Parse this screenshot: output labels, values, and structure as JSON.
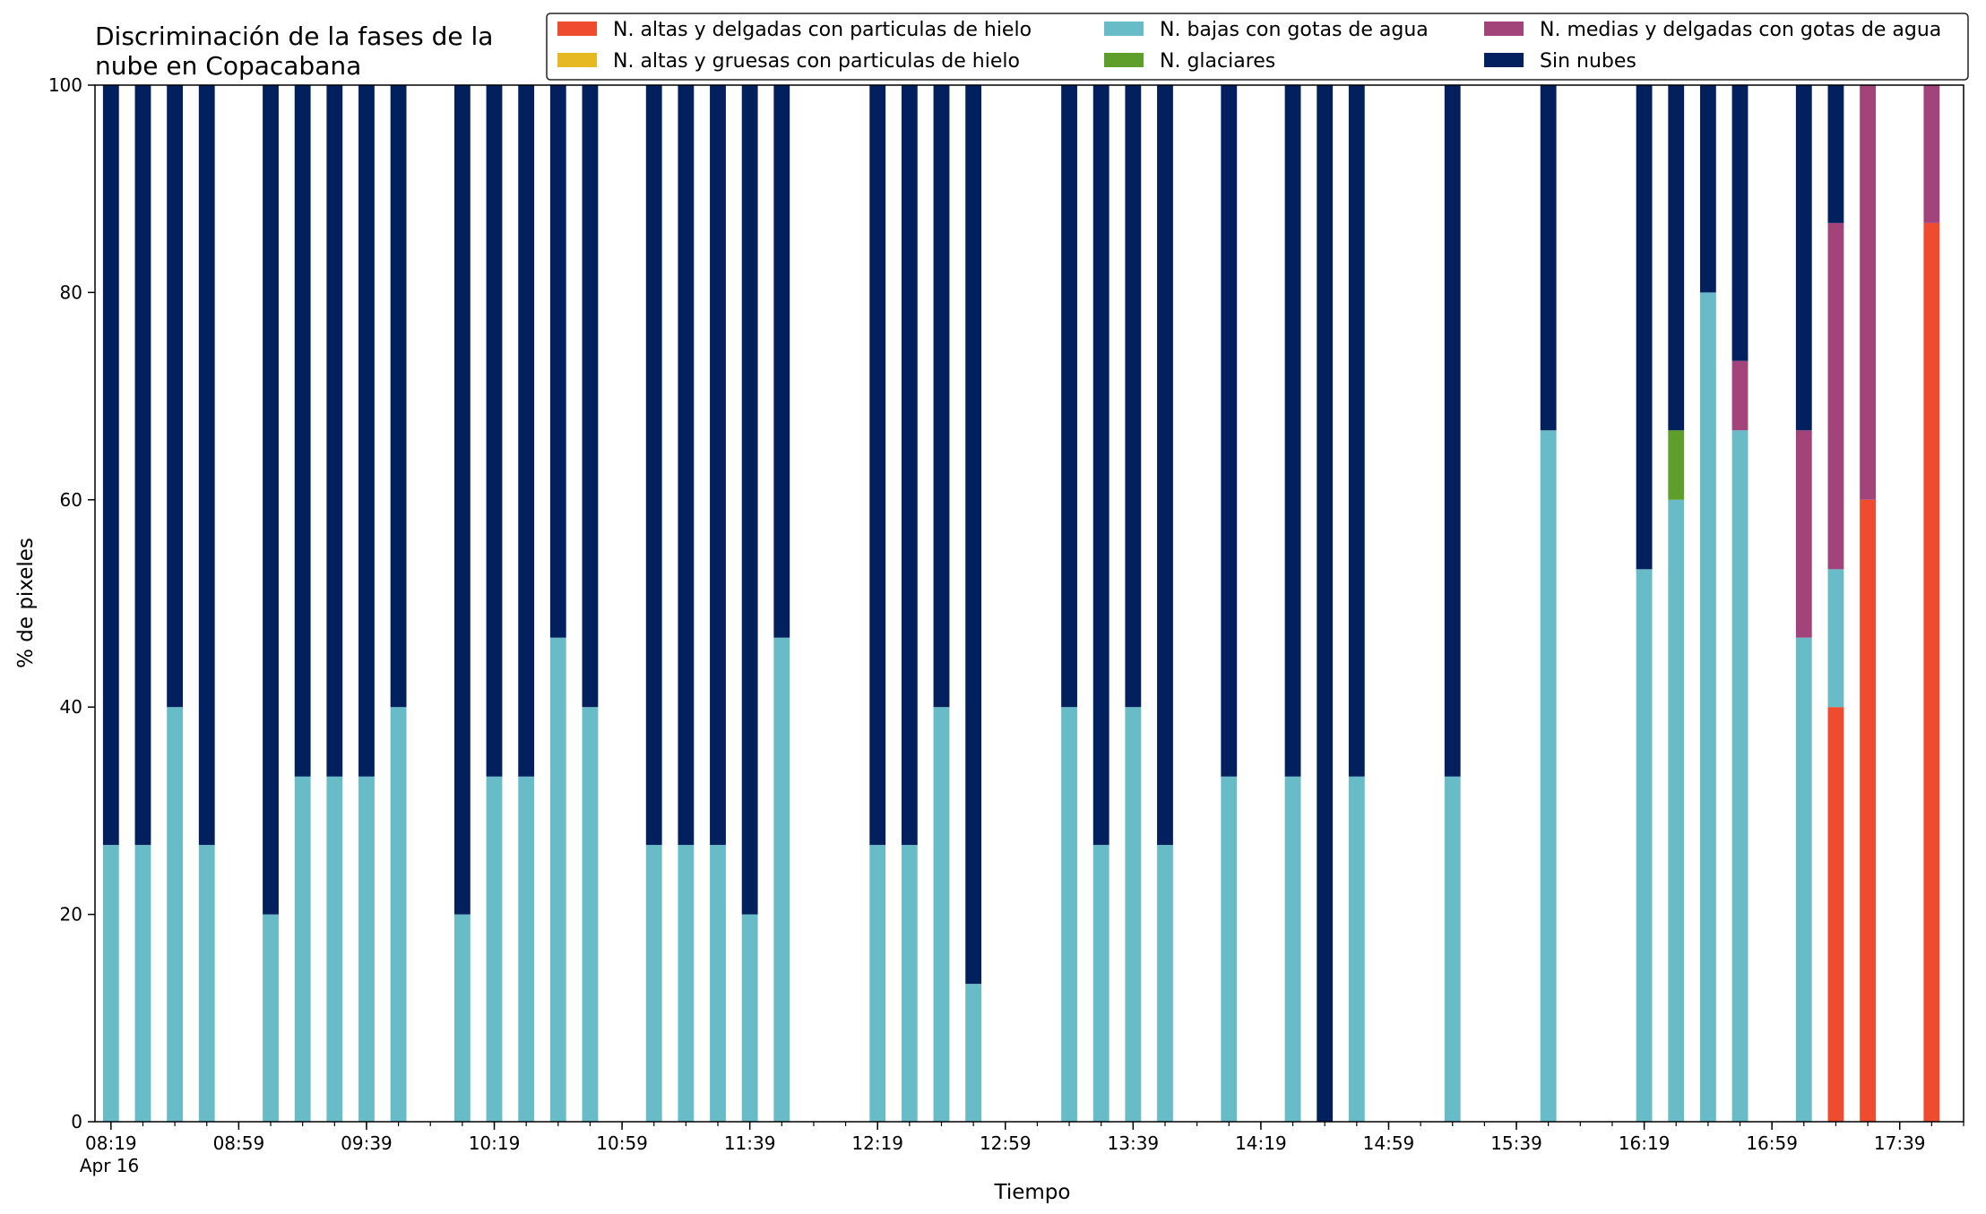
{
  "chart_data": {
    "type": "bar",
    "stacked": true,
    "title": "Discriminación de la fases de la nube en Copacabana",
    "title_lines": [
      "Discriminación de la fases de la",
      "nube en Copacabana"
    ],
    "xlabel": "Tiempo",
    "ylabel": "% de pixeles",
    "ylim": [
      0,
      100
    ],
    "yticks": [
      0,
      20,
      40,
      60,
      80,
      100
    ],
    "xlim": [
      "08:14",
      "17:59"
    ],
    "x_major_ticks": [
      {
        "time": "08:19",
        "label": "08:19",
        "sublabel": "Apr 16"
      },
      {
        "time": "08:59",
        "label": "08:59"
      },
      {
        "time": "09:39",
        "label": "09:39"
      },
      {
        "time": "10:19",
        "label": "10:19"
      },
      {
        "time": "10:59",
        "label": "10:59"
      },
      {
        "time": "11:39",
        "label": "11:39"
      },
      {
        "time": "12:19",
        "label": "12:19"
      },
      {
        "time": "12:59",
        "label": "12:59"
      },
      {
        "time": "13:39",
        "label": "13:39"
      },
      {
        "time": "14:19",
        "label": "14:19"
      },
      {
        "time": "14:59",
        "label": "14:59"
      },
      {
        "time": "15:39",
        "label": "15:39"
      },
      {
        "time": "16:19",
        "label": "16:19"
      },
      {
        "time": "16:59",
        "label": "16:59"
      },
      {
        "time": "17:39",
        "label": "17:39"
      }
    ],
    "x_minor_tick_step_minutes": 10,
    "legend_position": "top-right",
    "legend_columns": 3,
    "series": [
      {
        "name": "N. altas y delgadas con particulas de hielo",
        "color": "#ef4b2f"
      },
      {
        "name": "N. altas y gruesas con particulas de hielo",
        "color": "#e6b822"
      },
      {
        "name": "N. bajas con gotas de agua",
        "color": "#67bcc8"
      },
      {
        "name": "N. glaciares",
        "color": "#5e9e2b"
      },
      {
        "name": "N. medias y delgadas con gotas de agua",
        "color": "#a2447a"
      },
      {
        "name": "Sin nubes",
        "color": "#021f5e"
      }
    ],
    "bars": [
      {
        "time": "08:19",
        "values": [
          0,
          0,
          26.7,
          0,
          0,
          73.3
        ]
      },
      {
        "time": "08:29",
        "values": [
          0,
          0,
          26.7,
          0,
          0,
          73.3
        ]
      },
      {
        "time": "08:39",
        "values": [
          0,
          0,
          40,
          0,
          0,
          60
        ]
      },
      {
        "time": "08:49",
        "values": [
          0,
          0,
          26.7,
          0,
          0,
          73.3
        ]
      },
      {
        "time": "09:09",
        "values": [
          0,
          0,
          20,
          0,
          0,
          80
        ]
      },
      {
        "time": "09:19",
        "values": [
          0,
          0,
          33.3,
          0,
          0,
          66.7
        ]
      },
      {
        "time": "09:29",
        "values": [
          0,
          0,
          33.3,
          0,
          0,
          66.7
        ]
      },
      {
        "time": "09:39",
        "values": [
          0,
          0,
          33.3,
          0,
          0,
          66.7
        ]
      },
      {
        "time": "09:49",
        "values": [
          0,
          0,
          40,
          0,
          0,
          60
        ]
      },
      {
        "time": "10:09",
        "values": [
          0,
          0,
          20,
          0,
          0,
          80
        ]
      },
      {
        "time": "10:19",
        "values": [
          0,
          0,
          33.3,
          0,
          0,
          66.7
        ]
      },
      {
        "time": "10:29",
        "values": [
          0,
          0,
          33.3,
          0,
          0,
          66.7
        ]
      },
      {
        "time": "10:39",
        "values": [
          0,
          0,
          46.7,
          0,
          0,
          53.3
        ]
      },
      {
        "time": "10:49",
        "values": [
          0,
          0,
          40,
          0,
          0,
          60
        ]
      },
      {
        "time": "11:09",
        "values": [
          0,
          0,
          26.7,
          0,
          0,
          73.3
        ]
      },
      {
        "time": "11:19",
        "values": [
          0,
          0,
          26.7,
          0,
          0,
          73.3
        ]
      },
      {
        "time": "11:29",
        "values": [
          0,
          0,
          26.7,
          0,
          0,
          73.3
        ]
      },
      {
        "time": "11:39",
        "values": [
          0,
          0,
          20,
          0,
          0,
          80
        ]
      },
      {
        "time": "11:49",
        "values": [
          0,
          0,
          46.7,
          0,
          0,
          53.3
        ]
      },
      {
        "time": "12:19",
        "values": [
          0,
          0,
          26.7,
          0,
          0,
          73.3
        ]
      },
      {
        "time": "12:29",
        "values": [
          0,
          0,
          26.7,
          0,
          0,
          73.3
        ]
      },
      {
        "time": "12:39",
        "values": [
          0,
          0,
          40,
          0,
          0,
          60
        ]
      },
      {
        "time": "12:49",
        "values": [
          0,
          0,
          13.3,
          0,
          0,
          86.7
        ]
      },
      {
        "time": "13:19",
        "values": [
          0,
          0,
          40,
          0,
          0,
          60
        ]
      },
      {
        "time": "13:29",
        "values": [
          0,
          0,
          26.7,
          0,
          0,
          73.3
        ]
      },
      {
        "time": "13:39",
        "values": [
          0,
          0,
          40,
          0,
          0,
          60
        ]
      },
      {
        "time": "13:49",
        "values": [
          0,
          0,
          26.7,
          0,
          0,
          73.3
        ]
      },
      {
        "time": "14:09",
        "values": [
          0,
          0,
          33.3,
          0,
          0,
          66.7
        ]
      },
      {
        "time": "14:29",
        "values": [
          0,
          0,
          33.3,
          0,
          0,
          66.7
        ]
      },
      {
        "time": "14:39",
        "values": [
          0,
          0,
          0,
          0,
          0,
          100
        ]
      },
      {
        "time": "14:49",
        "values": [
          0,
          0,
          33.3,
          0,
          0,
          66.7
        ]
      },
      {
        "time": "15:19",
        "values": [
          0,
          0,
          33.3,
          0,
          0,
          66.7
        ]
      },
      {
        "time": "15:49",
        "values": [
          0,
          0,
          66.7,
          0,
          0,
          33.3
        ]
      },
      {
        "time": "16:19",
        "values": [
          0,
          0,
          53.3,
          0,
          0,
          46.7
        ]
      },
      {
        "time": "16:29",
        "values": [
          0,
          0,
          60,
          6.7,
          0,
          33.3
        ]
      },
      {
        "time": "16:39",
        "values": [
          0,
          0,
          80,
          0,
          0,
          20
        ]
      },
      {
        "time": "16:49",
        "values": [
          0,
          0,
          66.7,
          0,
          6.7,
          26.6
        ]
      },
      {
        "time": "17:09",
        "values": [
          0,
          0,
          46.7,
          0,
          20,
          33.3
        ]
      },
      {
        "time": "17:19",
        "values": [
          40,
          0,
          13.3,
          0,
          33.4,
          13.3
        ]
      },
      {
        "time": "17:29",
        "values": [
          60,
          0,
          0,
          0,
          40,
          0
        ]
      },
      {
        "time": "17:49",
        "values": [
          86.7,
          0,
          0,
          0,
          13.3,
          0
        ]
      }
    ]
  }
}
